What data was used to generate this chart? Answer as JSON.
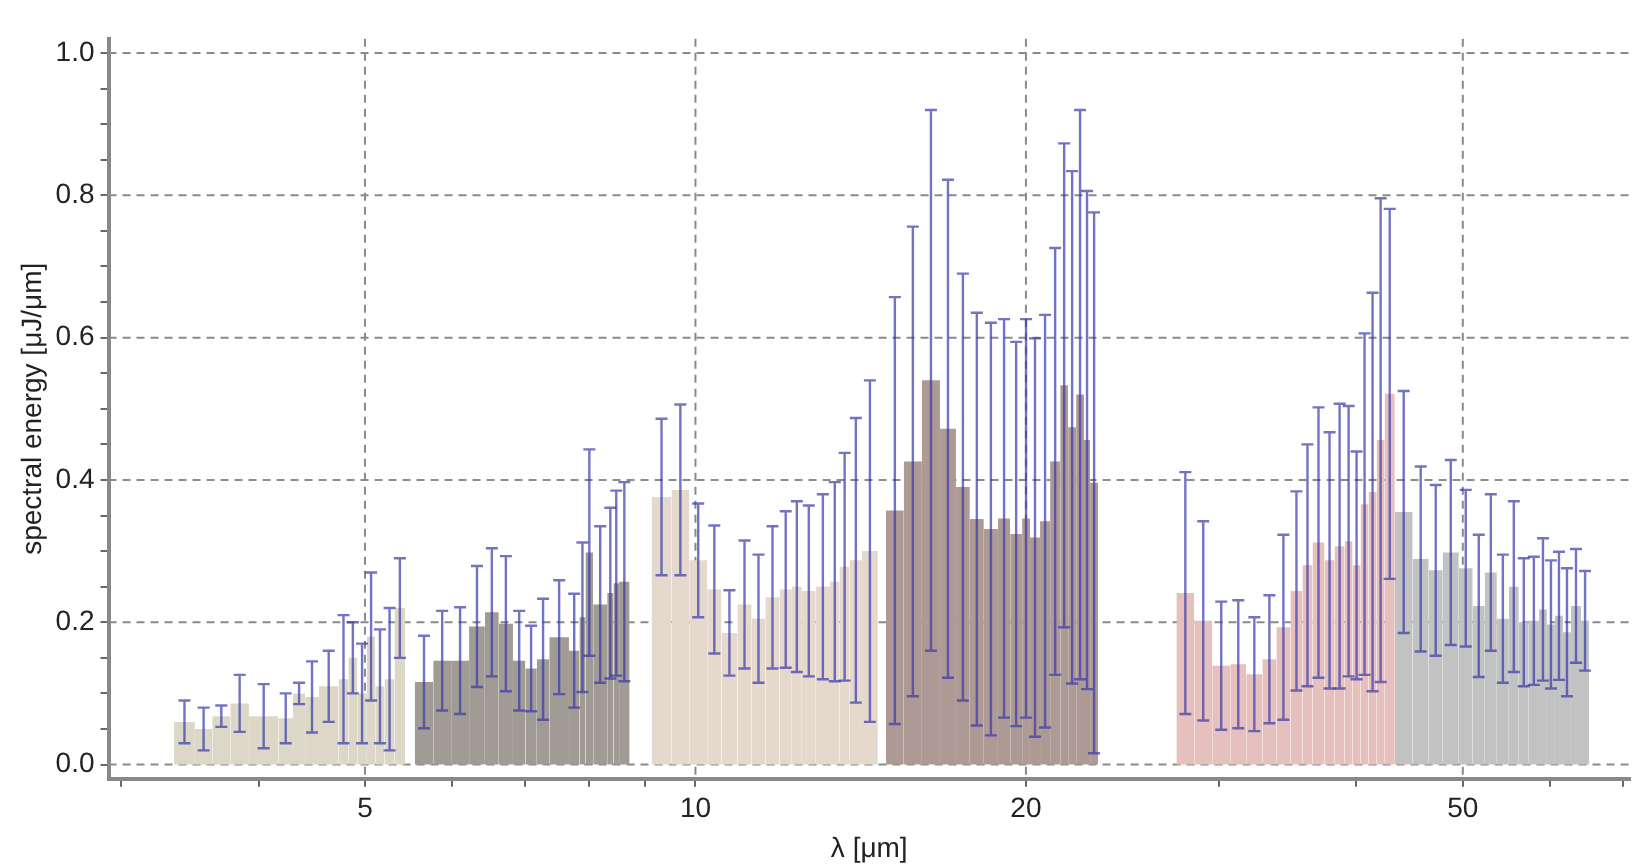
{
  "chart_data": {
    "type": "histogram",
    "xlabel": "λ [μm]",
    "ylabel": "spectral energy [μJ/μm]",
    "log": "x",
    "grid": true,
    "xlim": [
      2.92,
      71
    ],
    "ylim": [
      -0.02,
      1.02
    ],
    "xticks": [
      {
        "value": 3,
        "label": null
      },
      {
        "value": 4,
        "label": null
      },
      5,
      {
        "value": 6,
        "label": null
      },
      {
        "value": 7,
        "label": null
      },
      {
        "value": 8,
        "label": null
      },
      {
        "value": 9,
        "label": null
      },
      10,
      20,
      {
        "value": 30,
        "label": null
      },
      {
        "value": 40,
        "label": null
      },
      50,
      {
        "value": 60,
        "label": null
      },
      {
        "value": 70,
        "label": null
      }
    ],
    "yticks": [
      {
        "value": 0,
        "label": "0.0"
      },
      {
        "value": 0.05,
        "label": null
      },
      {
        "value": 0.1,
        "label": null
      },
      {
        "value": 0.15,
        "label": null
      },
      0.2,
      {
        "value": 0.25,
        "label": null
      },
      {
        "value": 0.3,
        "label": null
      },
      {
        "value": 0.35,
        "label": null
      },
      0.4,
      {
        "value": 0.45,
        "label": null
      },
      {
        "value": 0.5,
        "label": null
      },
      {
        "value": 0.55,
        "label": null
      },
      0.6,
      {
        "value": 0.65,
        "label": null
      },
      {
        "value": 0.7,
        "label": null
      },
      {
        "value": 0.75,
        "label": null
      },
      0.8,
      {
        "value": 0.85,
        "label": null
      },
      {
        "value": 0.9,
        "label": null
      },
      {
        "value": 0.95,
        "label": null
      },
      {
        "value": 1,
        "label": "1.0"
      }
    ],
    "bins": [
      3.35,
      3.5,
      3.63,
      3.77,
      3.92,
      4.17,
      4.3,
      4.41,
      4.54,
      4.73,
      4.83,
      4.92,
      5.02,
      5.11,
      5.21,
      5.32,
      5.44,
      5.55,
      5.77,
      5.99,
      6.22,
      6.43,
      6.62,
      6.82,
      7.0,
      7.17,
      7.36,
      7.67,
      7.84,
      7.94,
      8.07,
      8.31,
      8.42,
      8.52,
      8.71,
      9.12,
      9.51,
      9.87,
      10.25,
      10.56,
      10.92,
      11.25,
      11.58,
      11.93,
      12.24,
      12.5,
      12.87,
      13.26,
      13.53,
      13.82,
      14.18,
      14.66,
      14.91,
      15.48,
      16.08,
      16.7,
      17.27,
      17.78,
      18.31,
      18.86,
      19.35,
      19.84,
      20.17,
      20.6,
      21.04,
      21.49,
      21.85,
      22.22,
      22.59,
      22.88,
      23.27,
      27.42,
      28.47,
      29.56,
      30.7,
      31.75,
      32.84,
      33.82,
      34.83,
      35.72,
      36.48,
      37.41,
      38.21,
      39.02,
      39.68,
      40.35,
      41.03,
      41.73,
      42.44,
      43.35,
      45.01,
      46.55,
      47.94,
      49.58,
      51.05,
      52.36,
      53.7,
      55.07,
      56.23,
      57.42,
      58.66,
      59.65,
      60.66,
      61.69,
      62.73,
      64.07,
      65.16
    ],
    "values": [
      0.06,
      0.05,
      0.068,
      0.086,
      0.068,
      0.065,
      0.1,
      0.095,
      0.11,
      0.12,
      0.15,
      0.1,
      0.18,
      0.11,
      0.12,
      0.22,
      null,
      0.116,
      0.146,
      0.146,
      0.194,
      0.214,
      0.198,
      0.146,
      0.135,
      0.148,
      0.179,
      0.16,
      0.207,
      0.298,
      0.225,
      0.241,
      0.255,
      0.257,
      null,
      0.376,
      0.386,
      0.287,
      0.246,
      0.185,
      0.225,
      0.205,
      0.235,
      0.246,
      0.25,
      0.244,
      0.25,
      0.257,
      0.278,
      0.287,
      0.3,
      null,
      0.357,
      0.426,
      0.54,
      0.472,
      0.39,
      0.345,
      0.331,
      0.346,
      0.324,
      0.346,
      0.319,
      0.342,
      0.426,
      0.533,
      0.474,
      0.52,
      0.456,
      0.396,
      null,
      0.241,
      0.202,
      0.139,
      0.141,
      0.127,
      0.148,
      0.193,
      0.244,
      0.28,
      0.312,
      0.287,
      0.307,
      0.314,
      0.28,
      0.366,
      0.383,
      0.456,
      0.521,
      0.355,
      0.289,
      0.273,
      0.298,
      0.276,
      0.223,
      0.27,
      0.205,
      0.25,
      0.2,
      0.202,
      0.218,
      0.197,
      0.209,
      0.186,
      0.223,
      0.202
    ],
    "errors": [
      0.03,
      0.03,
      0.015,
      0.04,
      0.045,
      0.035,
      0.015,
      0.05,
      0.05,
      0.09,
      0.05,
      0.07,
      0.09,
      0.08,
      0.1,
      0.07,
      null,
      0.065,
      0.07,
      0.075,
      0.085,
      0.09,
      0.095,
      0.07,
      0.06,
      0.085,
      0.08,
      0.08,
      0.105,
      0.145,
      0.11,
      0.12,
      0.13,
      0.14,
      null,
      0.11,
      0.12,
      0.08,
      0.09,
      0.06,
      0.09,
      0.09,
      0.1,
      0.11,
      0.12,
      0.12,
      0.13,
      0.14,
      0.16,
      0.2,
      0.24,
      null,
      0.3,
      0.33,
      0.38,
      0.35,
      0.3,
      0.29,
      0.29,
      0.28,
      0.27,
      0.28,
      0.28,
      0.29,
      0.3,
      0.34,
      0.36,
      0.4,
      0.35,
      0.38,
      null,
      0.17,
      0.14,
      0.09,
      0.09,
      0.08,
      0.09,
      0.13,
      0.14,
      0.17,
      0.19,
      0.18,
      0.2,
      0.19,
      0.16,
      0.24,
      0.28,
      0.34,
      0.26,
      0.17,
      0.13,
      0.12,
      0.13,
      0.11,
      0.1,
      0.11,
      0.09,
      0.12,
      0.09,
      0.09,
      0.1,
      0.09,
      0.09,
      0.09,
      0.08,
      0.07
    ],
    "colors": [
      "#dcd7c7",
      "#dcd7c7",
      "#dcd7c7",
      "#dcd7c7",
      "#dcd7c7",
      "#dcd7c7",
      "#dcd7c7",
      "#dcd7c7",
      "#dcd7c7",
      "#dcd7c7",
      "#dcd7c7",
      "#dcd7c7",
      "#dcd7c7",
      "#dcd7c7",
      "#dcd7c7",
      "#dcd7c7",
      null,
      "#a09b94",
      "#a09b94",
      "#a09b94",
      "#a09b94",
      "#a09b94",
      "#a09b94",
      "#a09b94",
      "#a09b94",
      "#a09b94",
      "#a09b94",
      "#a09b94",
      "#a09b94",
      "#a09b94",
      "#a09b94",
      "#a09b94",
      "#a09b94",
      "#a09b94",
      null,
      "#e5d8cc",
      "#e5d8cc",
      "#e5d8cc",
      "#e5d8cc",
      "#e5d8cc",
      "#e5d8cc",
      "#e5d8cc",
      "#e5d8cc",
      "#e5d8cc",
      "#e5d8cc",
      "#e5d8cc",
      "#e5d8cc",
      "#e5d8cc",
      "#e5d8cc",
      "#e5d8cc",
      "#e5d8cc",
      null,
      "#ad9a94",
      "#ad9a94",
      "#ad9a94",
      "#ad9a94",
      "#ad9a94",
      "#ad9a94",
      "#ad9a94",
      "#ad9a94",
      "#ad9a94",
      "#ad9a94",
      "#ad9a94",
      "#ad9a94",
      "#ad9a94",
      "#ad9a94",
      "#ad9a94",
      "#ad9a94",
      "#ad9a94",
      "#ad9a94",
      null,
      "#e6c0bd",
      "#e6c0bd",
      "#e6c0bd",
      "#e6c0bd",
      "#e6c0bd",
      "#e6c0bd",
      "#e6c0bd",
      "#e6c0bd",
      "#e6c0bd",
      "#e6c0bd",
      "#e6c0bd",
      "#e6c0bd",
      "#e6c0bd",
      "#e6c0bd",
      "#e6c0bd",
      "#e6c0bd",
      "#e6c0bd",
      "#e6c0bd",
      "#c2c2c2",
      "#c2c2c2",
      "#c2c2c2",
      "#c2c2c2",
      "#c2c2c2",
      "#c2c2c2",
      "#c2c2c2",
      "#c2c2c2",
      "#c2c2c2",
      "#c2c2c2",
      "#c2c2c2",
      "#c2c2c2",
      "#c2c2c2",
      "#c2c2c2",
      "#c2c2c2",
      "#c2c2c2",
      "#c2c2c2"
    ]
  }
}
